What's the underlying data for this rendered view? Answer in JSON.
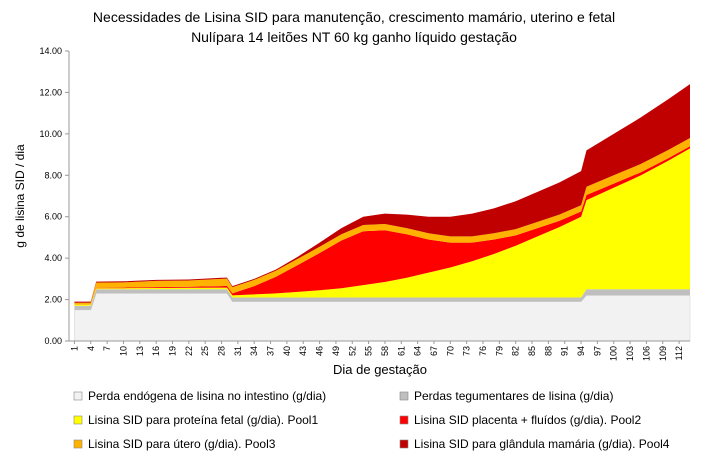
{
  "chart_data": {
    "type": "stacked_area",
    "title": "Necessidades de Lisina SID para manutenção, crescimento mamário, uterino e fetal",
    "subtitle": "Nulípara 14 leitões NT 60 kg ganho líquido gestação",
    "x_label": "Dia de gestação",
    "y_label": "g de lisina SID / dia",
    "x": [
      1,
      4,
      5,
      10,
      16,
      22,
      28,
      29,
      30,
      34,
      38,
      42,
      46,
      50,
      54,
      58,
      62,
      66,
      70,
      74,
      78,
      82,
      86,
      90,
      94,
      95,
      100,
      105,
      110,
      114
    ],
    "xlim": [
      0,
      114
    ],
    "xticks": [
      1,
      4,
      7,
      10,
      13,
      16,
      19,
      22,
      25,
      28,
      31,
      34,
      37,
      40,
      43,
      46,
      49,
      52,
      55,
      58,
      61,
      64,
      67,
      70,
      73,
      76,
      79,
      82,
      85,
      88,
      91,
      94,
      97,
      100,
      103,
      106,
      109,
      112
    ],
    "ylim": [
      0,
      14
    ],
    "yticks": [
      {
        "value": 0,
        "label": "0.00"
      },
      {
        "value": 2,
        "label": "2.00"
      },
      {
        "value": 4,
        "label": "4.00"
      },
      {
        "value": 6,
        "label": "6.00"
      },
      {
        "value": 8,
        "label": "8.00"
      },
      {
        "value": 10,
        "label": "10.00"
      },
      {
        "value": 12,
        "label": "12.00"
      },
      {
        "value": 14,
        "label": "14.00"
      }
    ],
    "legend": "bottom",
    "series": [
      {
        "name": "Perda endógena de lisina no intestino (g/dia)",
        "color": "#f2f2f2",
        "values": [
          1.5,
          1.5,
          2.3,
          2.3,
          2.3,
          2.3,
          2.3,
          2.3,
          1.9,
          1.9,
          1.9,
          1.9,
          1.9,
          1.9,
          1.9,
          1.9,
          1.9,
          1.9,
          1.9,
          1.9,
          1.9,
          1.9,
          1.9,
          1.9,
          1.9,
          2.2,
          2.2,
          2.2,
          2.2,
          2.2
        ]
      },
      {
        "name": "Perdas tegumentares de lisina (g/dia)",
        "color": "#bfbfbf",
        "values": [
          0.2,
          0.2,
          0.2,
          0.2,
          0.2,
          0.2,
          0.2,
          0.2,
          0.2,
          0.2,
          0.2,
          0.2,
          0.2,
          0.2,
          0.2,
          0.2,
          0.2,
          0.2,
          0.2,
          0.2,
          0.2,
          0.2,
          0.2,
          0.2,
          0.2,
          0.3,
          0.3,
          0.3,
          0.3,
          0.3
        ]
      },
      {
        "name": "Lisina SID para proteína fetal (g/dia). Pool1",
        "color": "#ffff00",
        "values": [
          0.05,
          0.05,
          0.05,
          0.05,
          0.06,
          0.07,
          0.08,
          0.08,
          0.1,
          0.15,
          0.2,
          0.27,
          0.35,
          0.45,
          0.6,
          0.75,
          0.95,
          1.2,
          1.45,
          1.75,
          2.1,
          2.5,
          2.95,
          3.4,
          3.9,
          4.3,
          4.9,
          5.5,
          6.2,
          6.8
        ]
      },
      {
        "name": "Lisina SID placenta + fluídos (g/dia). Pool2",
        "color": "#ff0000",
        "values": [
          0,
          0,
          0.02,
          0.03,
          0.04,
          0.05,
          0.07,
          0.08,
          0.1,
          0.4,
          0.8,
          1.3,
          1.8,
          2.3,
          2.6,
          2.5,
          2.1,
          1.6,
          1.2,
          0.9,
          0.7,
          0.5,
          0.4,
          0.3,
          0.25,
          0.25,
          0.2,
          0.15,
          0.12,
          0.1
        ]
      },
      {
        "name": "Lisina SID para útero (g/dia). Pool3",
        "color": "#ffb300",
        "values": [
          0.1,
          0.1,
          0.25,
          0.25,
          0.3,
          0.3,
          0.35,
          0.35,
          0.3,
          0.3,
          0.3,
          0.3,
          0.3,
          0.3,
          0.3,
          0.3,
          0.3,
          0.3,
          0.3,
          0.3,
          0.3,
          0.3,
          0.3,
          0.3,
          0.3,
          0.4,
          0.4,
          0.4,
          0.4,
          0.4
        ]
      },
      {
        "name": "Lisina SID para glândula mamária (g/dia). Pool4",
        "color": "#c00000",
        "values": [
          0.05,
          0.05,
          0.05,
          0.05,
          0.05,
          0.05,
          0.05,
          0.05,
          0.05,
          0.05,
          0.05,
          0.1,
          0.2,
          0.3,
          0.4,
          0.5,
          0.65,
          0.8,
          0.95,
          1.1,
          1.2,
          1.35,
          1.45,
          1.55,
          1.65,
          1.75,
          2.0,
          2.25,
          2.45,
          2.6
        ]
      }
    ]
  }
}
